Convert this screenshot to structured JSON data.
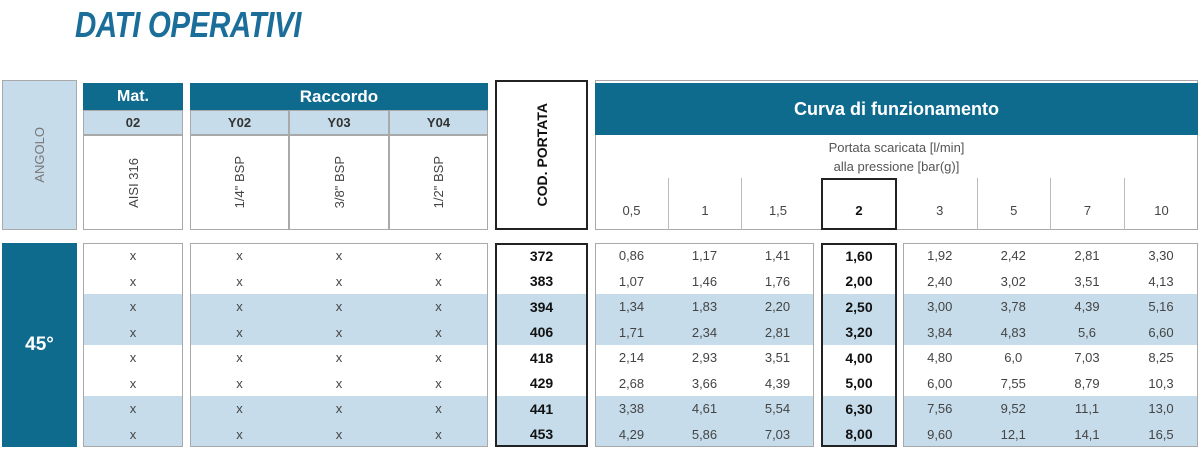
{
  "title": "DATI OPERATIVI",
  "header": {
    "angle": "ANGOLO",
    "mat": {
      "title": "Mat.",
      "code": "02",
      "material": "AISI 316"
    },
    "raccordo": {
      "title": "Raccordo",
      "columns": [
        {
          "code": "Y02",
          "size": "1/4\" BSP"
        },
        {
          "code": "Y03",
          "size": "3/8\" BSP"
        },
        {
          "code": "Y04",
          "size": "1/2\" BSP"
        }
      ]
    },
    "cod_portata": "COD. PORTATA",
    "curve": {
      "title": "Curva di funzionamento",
      "subtitle_lines": [
        "Portata scaricata [l/min]",
        "alla pressione [bar(g)]"
      ],
      "pressures": [
        "0,5",
        "1",
        "1,5",
        "2",
        "3",
        "5",
        "7",
        "10"
      ]
    }
  },
  "table": {
    "angle": "45°",
    "rows": [
      {
        "mat": "x",
        "raccordo": [
          "x",
          "x",
          "x"
        ],
        "cod": "372",
        "flows": [
          "0,86",
          "1,17",
          "1,41",
          "1,60",
          "1,92",
          "2,42",
          "2,81",
          "3,30"
        ]
      },
      {
        "mat": "x",
        "raccordo": [
          "x",
          "x",
          "x"
        ],
        "cod": "383",
        "flows": [
          "1,07",
          "1,46",
          "1,76",
          "2,00",
          "2,40",
          "3,02",
          "3,51",
          "4,13"
        ]
      },
      {
        "mat": "x",
        "raccordo": [
          "x",
          "x",
          "x"
        ],
        "cod": "394",
        "flows": [
          "1,34",
          "1,83",
          "2,20",
          "2,50",
          "3,00",
          "3,78",
          "4,39",
          "5,16"
        ]
      },
      {
        "mat": "x",
        "raccordo": [
          "x",
          "x",
          "x"
        ],
        "cod": "406",
        "flows": [
          "1,71",
          "2,34",
          "2,81",
          "3,20",
          "3,84",
          "4,83",
          "5,6",
          "6,60"
        ]
      },
      {
        "mat": "x",
        "raccordo": [
          "x",
          "x",
          "x"
        ],
        "cod": "418",
        "flows": [
          "2,14",
          "2,93",
          "3,51",
          "4,00",
          "4,80",
          "6,0",
          "7,03",
          "8,25"
        ]
      },
      {
        "mat": "x",
        "raccordo": [
          "x",
          "x",
          "x"
        ],
        "cod": "429",
        "flows": [
          "2,68",
          "3,66",
          "4,39",
          "5,00",
          "6,00",
          "7,55",
          "8,79",
          "10,3"
        ]
      },
      {
        "mat": "x",
        "raccordo": [
          "x",
          "x",
          "x"
        ],
        "cod": "441",
        "flows": [
          "3,38",
          "4,61",
          "5,54",
          "6,30",
          "7,56",
          "9,52",
          "11,1",
          "13,0"
        ]
      },
      {
        "mat": "x",
        "raccordo": [
          "x",
          "x",
          "x"
        ],
        "cod": "453",
        "flows": [
          "4,29",
          "5,86",
          "7,03",
          "8,00",
          "9,60",
          "12,1",
          "14,1",
          "16,5"
        ]
      }
    ]
  }
}
